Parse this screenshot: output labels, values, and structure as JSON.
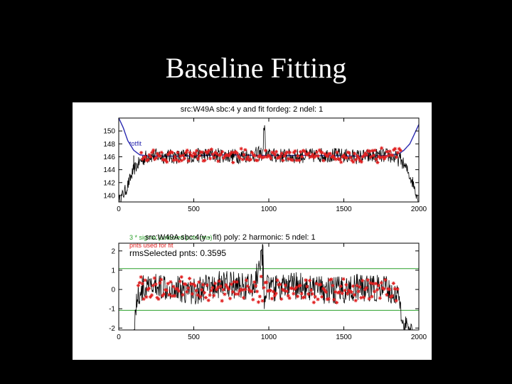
{
  "slide": {
    "title": "Baseline Fitting"
  },
  "colors": {
    "background": "#000000",
    "title_text": "#ffffff",
    "panel": "#ffffff",
    "data_line": "#000000",
    "selected_points": "#e02020",
    "fit_line": "#2a2ab0",
    "threshold_lines": "#2aa02a"
  },
  "chart_data": [
    {
      "type": "line",
      "title": "src:W49A sbc:4 y and fit fordeg: 2 ndel: 1",
      "xlim": [
        0,
        2000
      ],
      "ylim": [
        139,
        152
      ],
      "xticks": [
        0,
        500,
        1000,
        1500,
        2000
      ],
      "yticks": [
        140,
        142,
        144,
        146,
        148,
        150
      ],
      "legend": {
        "position": "top-left",
        "entries": [
          {
            "label": "totfit",
            "color": "#2a2ab0"
          }
        ]
      },
      "series": [
        {
          "name": "totfit",
          "kind": "fit",
          "x": [
            0,
            30,
            60,
            100,
            140,
            200,
            400,
            700,
            1000,
            1300,
            1600,
            1800,
            1870,
            1900,
            1940,
            1970,
            2000
          ],
          "y": [
            152,
            150.5,
            148.5,
            147,
            146.3,
            146.1,
            146.1,
            146.3,
            146.2,
            146.2,
            146.1,
            146.2,
            146.5,
            147,
            148,
            149.5,
            151
          ]
        },
        {
          "kind": "data",
          "x": [
            0,
            50,
            100,
            150,
            200,
            400,
            600,
            800,
            960,
            970,
            980,
            1000,
            1200,
            1400,
            1600,
            1800,
            1880,
            1920,
            1960,
            1990,
            2000
          ],
          "y": [
            139,
            141,
            144,
            145.5,
            146.2,
            146,
            146.3,
            146.1,
            146.5,
            151.5,
            146.3,
            146.2,
            146.1,
            146.3,
            146,
            146.2,
            145.5,
            144,
            142,
            140,
            139
          ]
        }
      ],
      "selected_range": [
        150,
        1880
      ],
      "selected_center": 146.2,
      "selected_spread": 0.9
    },
    {
      "type": "line",
      "title": "src:W49A sbc:4(y - fit) poly: 2 harmonic: 5 ndel: 1",
      "annotations": [
        {
          "text": "3 * sigma (selected pnts rms)",
          "color": "#2aa02a"
        },
        {
          "text": "pnts used for fit",
          "color": "#e02020"
        },
        {
          "text": "rmsSelected pnts: 0.3595",
          "color": "#000000"
        }
      ],
      "xlim": [
        0,
        2000
      ],
      "ylim": [
        -2.1,
        2.4
      ],
      "xticks": [
        0,
        500,
        1000,
        1500,
        2000
      ],
      "yticks": [
        -2,
        -1,
        0,
        1,
        2
      ],
      "threshold_lines": [
        1.08,
        -1.08
      ],
      "series": [
        {
          "kind": "data",
          "x": [
            100,
            120,
            150,
            300,
            500,
            700,
            900,
            960,
            970,
            980,
            1000,
            1200,
            1400,
            1600,
            1800,
            1870,
            1890,
            1920,
            1960
          ],
          "y": [
            -2.1,
            -0.5,
            0,
            0.2,
            -0.1,
            0.3,
            0.1,
            1.8,
            -0.3,
            0.2,
            0,
            0.2,
            -0.1,
            0.1,
            0,
            -0.5,
            -1.5,
            -2.1,
            -2.1
          ]
        }
      ],
      "selected_range": [
        130,
        1860
      ],
      "selected_center": 0,
      "selected_spread": 0.55
    }
  ]
}
